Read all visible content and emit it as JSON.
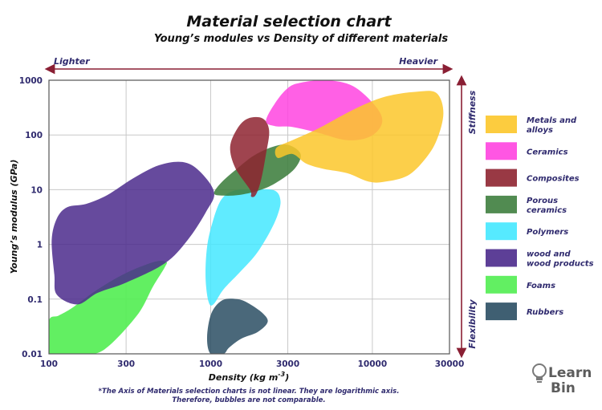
{
  "chart_data": {
    "type": "scatter",
    "title": "Material selection chart",
    "subtitle": "Young’s modules vs Density of different materials",
    "xlabel": "Density (kg m",
    "xlabel_sup": "-3",
    "xlabel_end": ")",
    "ylabel": "Young’s modulus (GPa)",
    "x_scale": "log",
    "y_scale": "log",
    "xlim": [
      100,
      30000
    ],
    "ylim": [
      0.01,
      1000
    ],
    "x_ticks": [
      100,
      300,
      1000,
      3000,
      10000,
      30000
    ],
    "x_tick_labels": [
      "100",
      "300",
      "1000",
      "3000",
      "10000",
      "30000"
    ],
    "y_ticks": [
      1000,
      100,
      10,
      1,
      0.1,
      0.01
    ],
    "y_tick_labels": [
      "1000",
      "100",
      "10",
      "1",
      "0.1",
      "0.01"
    ],
    "grid": true,
    "legend_position": "right",
    "annotations": {
      "lighter": "Lighter",
      "heavier": "Heavier",
      "stiffness": "Stiffness",
      "flexibility": "Flexibility",
      "note_line1": "*The Axis of Materials selection charts is not linear. They are logarithmic axis.",
      "note_line2": "Therefore, bubbles are not comparable."
    },
    "series": [
      {
        "name": "Foams",
        "legend": [
          "Foams"
        ],
        "color": "#55ee55",
        "opacity": 0.92,
        "points": [
          [
            100,
            0.04
          ],
          [
            115,
            0.05
          ],
          [
            140,
            0.07
          ],
          [
            200,
            0.15
          ],
          [
            300,
            0.3
          ],
          [
            450,
            0.48
          ],
          [
            530,
            0.48
          ],
          [
            520,
            0.38
          ],
          [
            440,
            0.17
          ],
          [
            350,
            0.05
          ],
          [
            220,
            0.012
          ],
          [
            160,
            0.01
          ],
          [
            100,
            0.01
          ]
        ]
      },
      {
        "name": "wood and wood products",
        "legend": [
          "wood and",
          "wood products"
        ],
        "color": "#4b2a8c",
        "opacity": 0.85,
        "points": [
          [
            108,
            0.28
          ],
          [
            104,
            1.2
          ],
          [
            112,
            3
          ],
          [
            130,
            4.8
          ],
          [
            170,
            5.5
          ],
          [
            230,
            8
          ],
          [
            330,
            16
          ],
          [
            480,
            28
          ],
          [
            670,
            32
          ],
          [
            850,
            22
          ],
          [
            1050,
            9
          ],
          [
            940,
            4
          ],
          [
            720,
            1.2
          ],
          [
            520,
            0.45
          ],
          [
            300,
            0.2
          ],
          [
            200,
            0.13
          ],
          [
            150,
            0.08
          ],
          [
            112,
            0.12
          ]
        ]
      },
      {
        "name": "Polymers",
        "legend": [
          "Polymers"
        ],
        "color": "#44e8ff",
        "opacity": 0.85,
        "points": [
          [
            970,
            0.09
          ],
          [
            930,
            0.25
          ],
          [
            950,
            0.9
          ],
          [
            1030,
            2.6
          ],
          [
            1160,
            6.5
          ],
          [
            1380,
            9.5
          ],
          [
            1750,
            10
          ],
          [
            2450,
            9.8
          ],
          [
            2700,
            6.5
          ],
          [
            2600,
            3.5
          ],
          [
            2300,
            1.6
          ],
          [
            1900,
            0.65
          ],
          [
            1500,
            0.3
          ],
          [
            1200,
            0.15
          ],
          [
            1040,
            0.08
          ]
        ]
      },
      {
        "name": "Porous ceramics",
        "legend": [
          "Porous",
          "ceramics"
        ],
        "color": "#3e7e3e",
        "opacity": 0.88,
        "points": [
          [
            1050,
            8.5
          ],
          [
            1150,
            13
          ],
          [
            1450,
            24
          ],
          [
            1850,
            42
          ],
          [
            2400,
            60
          ],
          [
            3000,
            66
          ],
          [
            3600,
            45
          ],
          [
            3300,
            24
          ],
          [
            2500,
            13
          ],
          [
            1950,
            9.5
          ],
          [
            1500,
            8
          ],
          [
            1200,
            7.8
          ]
        ]
      },
      {
        "name": "Composites",
        "legend": [
          "Composites"
        ],
        "color": "#8e2330",
        "opacity": 0.85,
        "points": [
          [
            1750,
            10
          ],
          [
            1420,
            25
          ],
          [
            1320,
            60
          ],
          [
            1460,
            130
          ],
          [
            1700,
            200
          ],
          [
            2100,
            200
          ],
          [
            2300,
            120
          ],
          [
            2200,
            45
          ],
          [
            2050,
            15
          ],
          [
            1900,
            8
          ],
          [
            1780,
            7.5
          ]
        ]
      },
      {
        "name": "Ceramics",
        "legend": [
          "Ceramics"
        ],
        "color": "#ff44e0",
        "opacity": 0.85,
        "points": [
          [
            2200,
            180
          ],
          [
            2500,
            380
          ],
          [
            3000,
            720
          ],
          [
            3600,
            900
          ],
          [
            5200,
            1000
          ],
          [
            7600,
            780
          ],
          [
            10500,
            330
          ],
          [
            11500,
            170
          ],
          [
            9800,
            95
          ],
          [
            7000,
            80
          ],
          [
            4600,
            110
          ],
          [
            3200,
            140
          ],
          [
            2500,
            145
          ]
        ]
      },
      {
        "name": "Metals and alloys",
        "legend": [
          "Metals and",
          "alloys"
        ],
        "color": "#fcc72a",
        "opacity": 0.85,
        "points": [
          [
            2600,
            38
          ],
          [
            2550,
            58
          ],
          [
            3200,
            80
          ],
          [
            4600,
            130
          ],
          [
            7800,
            300
          ],
          [
            12000,
            500
          ],
          [
            19000,
            620
          ],
          [
            25000,
            580
          ],
          [
            27500,
            250
          ],
          [
            25000,
            80
          ],
          [
            21000,
            35
          ],
          [
            16500,
            18
          ],
          [
            12000,
            14
          ],
          [
            9500,
            14
          ],
          [
            7000,
            20
          ],
          [
            5000,
            24
          ],
          [
            3900,
            30
          ],
          [
            3200,
            45
          ]
        ]
      },
      {
        "name": "Rubbers",
        "legend": [
          "Rubbers"
        ],
        "color": "#2a4e63",
        "opacity": 0.85,
        "points": [
          [
            1000,
            0.01
          ],
          [
            950,
            0.02
          ],
          [
            1010,
            0.055
          ],
          [
            1180,
            0.095
          ],
          [
            1450,
            0.1
          ],
          [
            1700,
            0.085
          ],
          [
            2100,
            0.055
          ],
          [
            2250,
            0.038
          ],
          [
            1950,
            0.025
          ],
          [
            1550,
            0.019
          ],
          [
            1300,
            0.013
          ],
          [
            1200,
            0.01
          ]
        ]
      }
    ]
  },
  "logo": {
    "line1": "Learn",
    "line2": "Bin"
  }
}
